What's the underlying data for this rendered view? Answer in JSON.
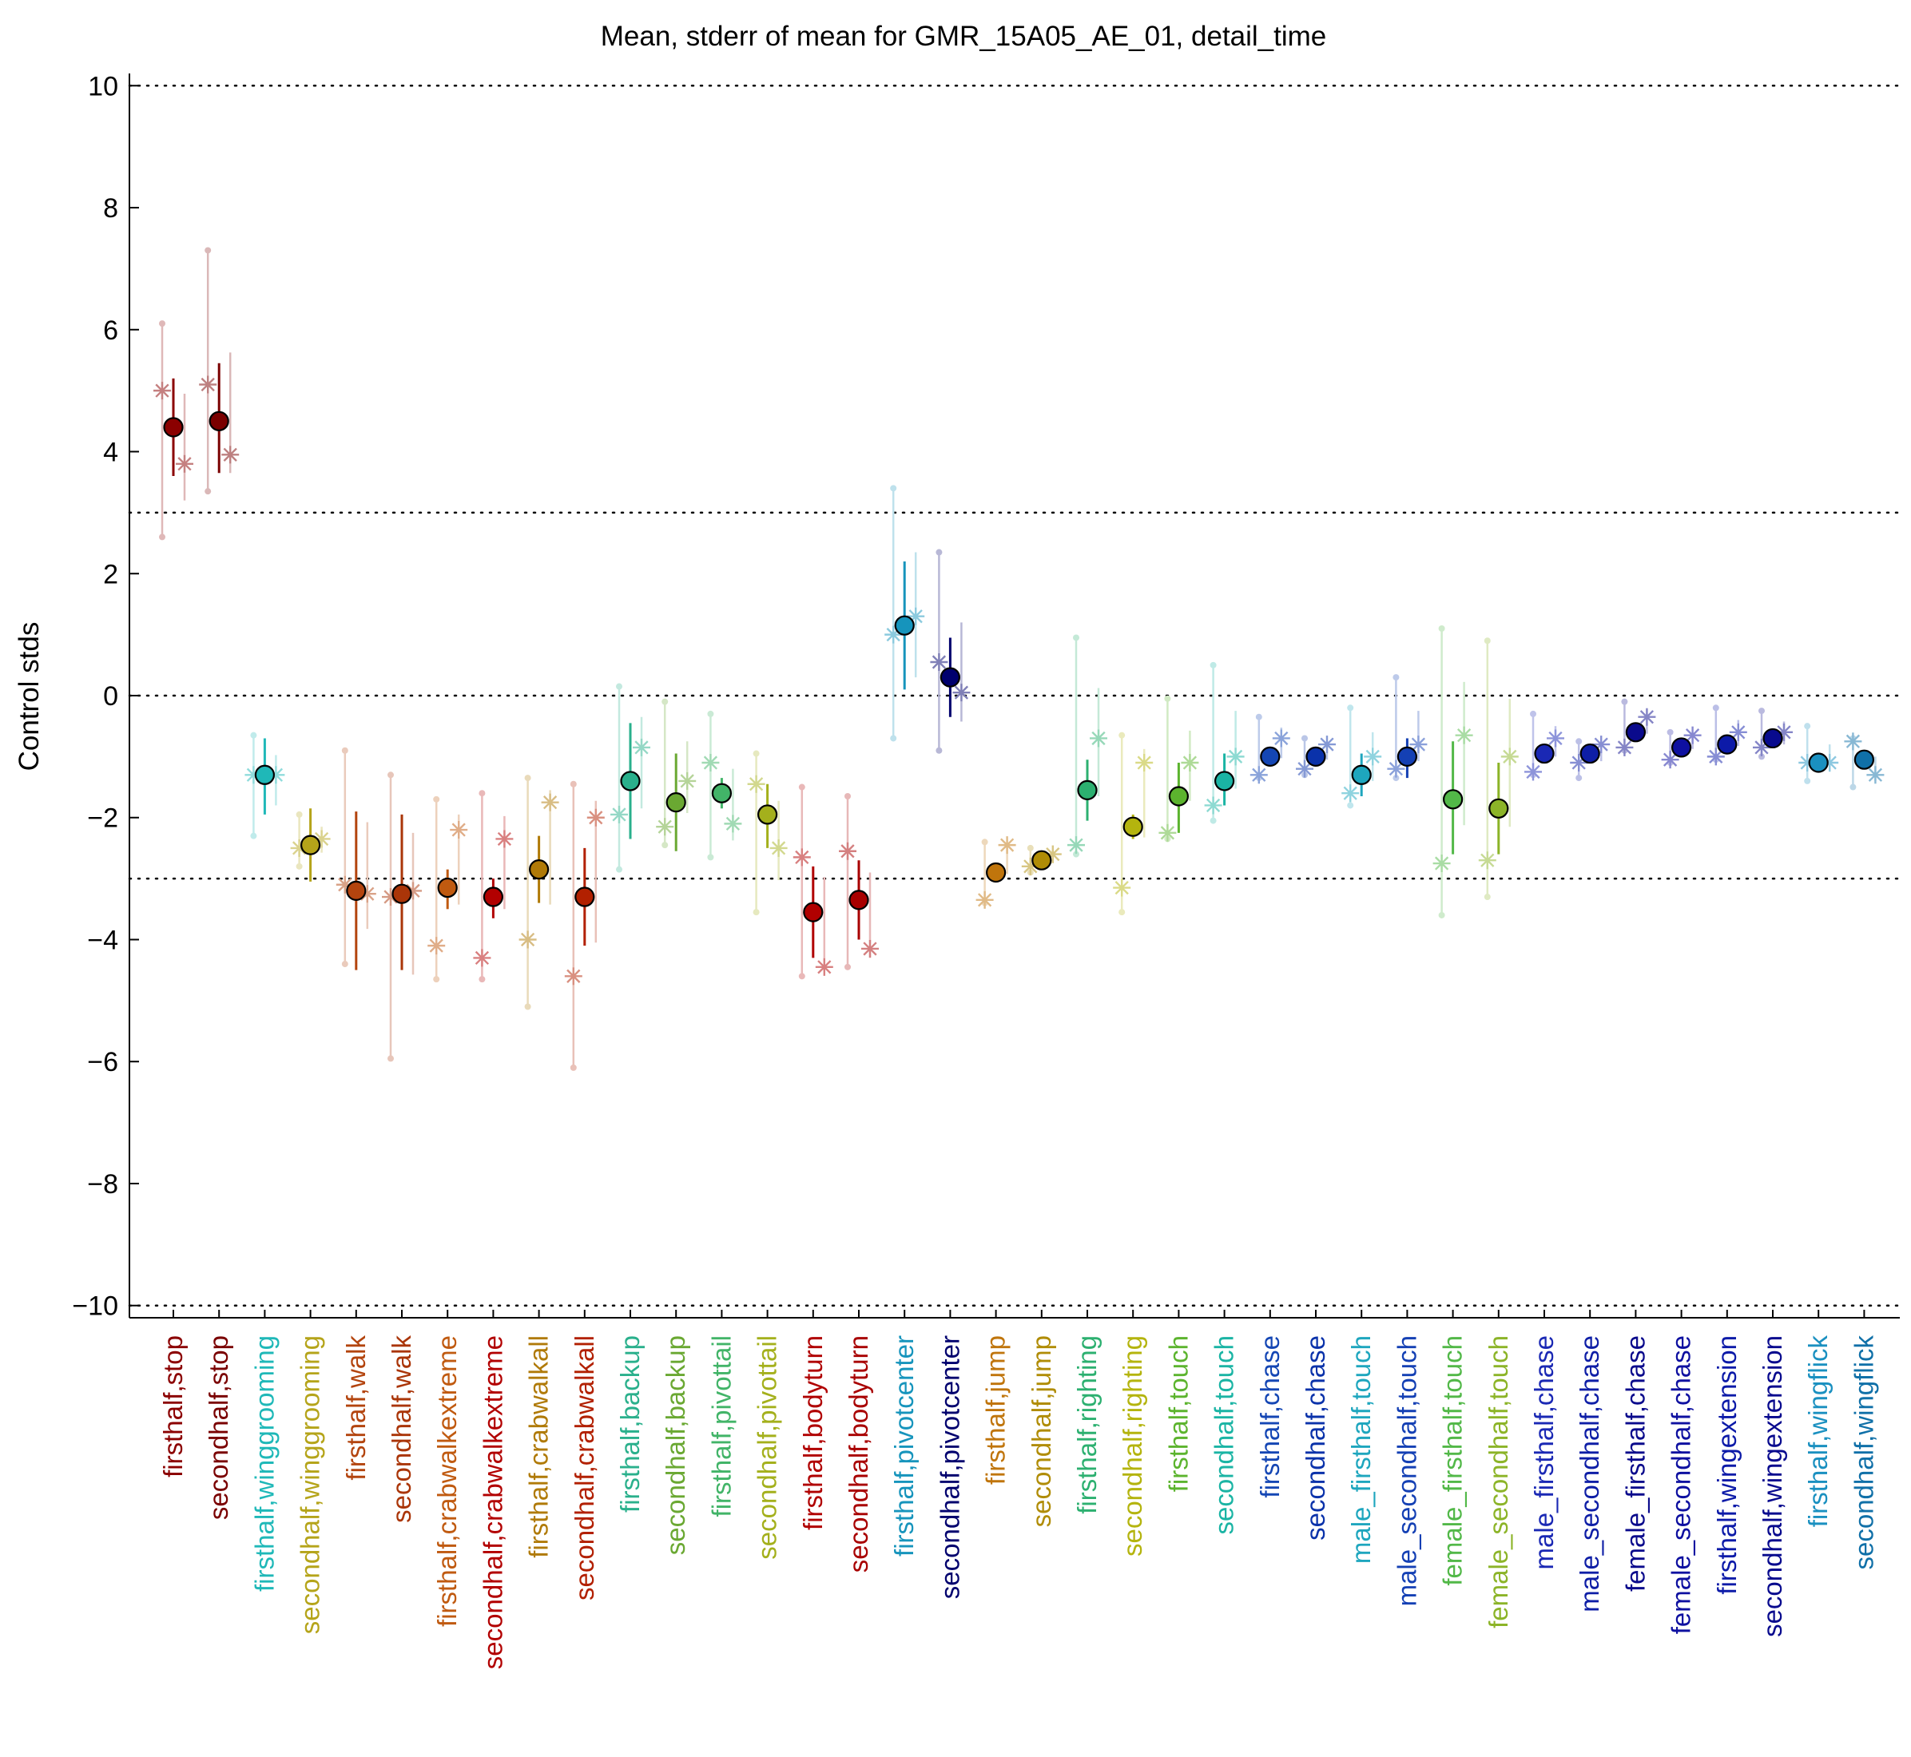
{
  "chart_data": {
    "type": "scatter",
    "title": "Mean, stderr of mean for GMR_15A05_AE_01, detail_time",
    "xlabel": "",
    "ylabel": "Control stds",
    "ylim": [
      -10.2,
      10.2
    ],
    "yticks": [
      10,
      8,
      6,
      4,
      2,
      0,
      -2,
      -4,
      -6,
      -8,
      -10
    ],
    "ytick_labels": [
      "10",
      "8",
      "6",
      "4",
      "2",
      "0",
      "−2",
      "−4",
      "−6",
      "−8",
      "−10"
    ],
    "reference_lines": [
      10,
      3,
      0,
      -3,
      -10
    ],
    "grid": false,
    "legend": "none",
    "points": [
      {
        "label": "firsthalf,stop",
        "color": "#8b0000",
        "mean": 4.4,
        "se_low": 3.6,
        "se_high": 5.2,
        "reps": [
          5.0,
          3.8
        ],
        "raw_low": 2.6,
        "raw_high": 6.1
      },
      {
        "label": "secondhalf,stop",
        "color": "#7a0000",
        "mean": 4.5,
        "se_low": 3.65,
        "se_high": 5.45,
        "reps": [
          5.1,
          3.95
        ],
        "raw_low": 3.35,
        "raw_high": 7.3
      },
      {
        "label": "firsthalf,winggrooming",
        "color": "#1fb8b8",
        "mean": -1.3,
        "se_low": -1.95,
        "se_high": -0.7,
        "reps": [
          -1.3,
          -1.3
        ],
        "raw_low": -2.3,
        "raw_high": -0.65
      },
      {
        "label": "secondhalf,winggrooming",
        "color": "#b5a41a",
        "mean": -2.45,
        "se_low": -3.05,
        "se_high": -1.85,
        "reps": [
          -2.5,
          -2.35
        ],
        "raw_low": -2.8,
        "raw_high": -1.95
      },
      {
        "label": "firsthalf,walk",
        "color": "#b3440e",
        "mean": -3.2,
        "se_low": -4.5,
        "se_high": -1.9,
        "reps": [
          -3.1,
          -3.25
        ],
        "raw_low": -4.4,
        "raw_high": -0.9
      },
      {
        "label": "secondhalf,walk",
        "color": "#aa3508",
        "mean": -3.25,
        "se_low": -4.5,
        "se_high": -1.95,
        "reps": [
          -3.3,
          -3.2
        ],
        "raw_low": -5.95,
        "raw_high": -1.3
      },
      {
        "label": "firsthalf,crabwalkextreme",
        "color": "#c05a10",
        "mean": -3.15,
        "se_low": -3.5,
        "se_high": -2.85,
        "reps": [
          -4.1,
          -2.2
        ],
        "raw_low": -4.65,
        "raw_high": -1.7
      },
      {
        "label": "secondhalf,crabwalkextreme",
        "color": "#b20000",
        "mean": -3.3,
        "se_low": -3.65,
        "se_high": -3.0,
        "reps": [
          -4.3,
          -2.35
        ],
        "raw_low": -4.65,
        "raw_high": -1.6
      },
      {
        "label": "firsthalf,crabwalkall",
        "color": "#b07a08",
        "mean": -2.85,
        "se_low": -3.4,
        "se_high": -2.3,
        "reps": [
          -4.0,
          -1.75
        ],
        "raw_low": -5.1,
        "raw_high": -1.35
      },
      {
        "label": "secondhalf,crabwalkall",
        "color": "#b22000",
        "mean": -3.3,
        "se_low": -4.1,
        "se_high": -2.5,
        "reps": [
          -4.6,
          -2.0
        ],
        "raw_low": -6.1,
        "raw_high": -1.45
      },
      {
        "label": "firsthalf,backup",
        "color": "#2ab08c",
        "mean": -1.4,
        "se_low": -2.35,
        "se_high": -0.45,
        "reps": [
          -1.95,
          -0.85
        ],
        "raw_low": -2.85,
        "raw_high": 0.15
      },
      {
        "label": "secondhalf,backup",
        "color": "#6aa832",
        "mean": -1.75,
        "se_low": -2.55,
        "se_high": -0.95,
        "reps": [
          -2.15,
          -1.4
        ],
        "raw_low": -2.45,
        "raw_high": -0.1
      },
      {
        "label": "firsthalf,pivottail",
        "color": "#42b468",
        "mean": -1.6,
        "se_low": -1.85,
        "se_high": -1.35,
        "reps": [
          -1.1,
          -2.1
        ],
        "raw_low": -2.65,
        "raw_high": -0.3
      },
      {
        "label": "secondhalf,pivottail",
        "color": "#a4b01c",
        "mean": -1.95,
        "se_low": -2.5,
        "se_high": -1.45,
        "reps": [
          -1.45,
          -2.5
        ],
        "raw_low": -3.55,
        "raw_high": -0.95
      },
      {
        "label": "firsthalf,bodyturn",
        "color": "#b00000",
        "mean": -3.55,
        "se_low": -4.3,
        "se_high": -2.8,
        "reps": [
          -2.65,
          -4.45
        ],
        "raw_low": -4.6,
        "raw_high": -1.5
      },
      {
        "label": "secondhalf,bodyturn",
        "color": "#a80000",
        "mean": -3.35,
        "se_low": -4.0,
        "se_high": -2.7,
        "reps": [
          -2.55,
          -4.15
        ],
        "raw_low": -4.45,
        "raw_high": -1.65
      },
      {
        "label": "firsthalf,pivotcenter",
        "color": "#1694bc",
        "mean": 1.15,
        "se_low": 0.1,
        "se_high": 2.2,
        "reps": [
          1.0,
          1.3
        ],
        "raw_low": -0.7,
        "raw_high": 3.4
      },
      {
        "label": "secondhalf,pivotcenter",
        "color": "#00006e",
        "mean": 0.3,
        "se_low": -0.35,
        "se_high": 0.95,
        "reps": [
          0.55,
          0.05
        ],
        "raw_low": -0.9,
        "raw_high": 2.35
      },
      {
        "label": "firsthalf,jump",
        "color": "#c0750c",
        "mean": -2.9,
        "se_low": -3.05,
        "se_high": -2.75,
        "reps": [
          -3.35,
          -2.45
        ],
        "raw_low": -3.4,
        "raw_high": -2.4
      },
      {
        "label": "secondhalf,jump",
        "color": "#b08c06",
        "mean": -2.7,
        "se_low": -2.85,
        "se_high": -2.55,
        "reps": [
          -2.8,
          -2.6
        ],
        "raw_low": -2.9,
        "raw_high": -2.5
      },
      {
        "label": "firsthalf,righting",
        "color": "#2cb070",
        "mean": -1.55,
        "se_low": -2.05,
        "se_high": -1.05,
        "reps": [
          -2.45,
          -0.7
        ],
        "raw_low": -2.6,
        "raw_high": 0.95
      },
      {
        "label": "secondhalf,righting",
        "color": "#b4b40e",
        "mean": -2.15,
        "se_low": -2.35,
        "se_high": -1.95,
        "reps": [
          -3.15,
          -1.1
        ],
        "raw_low": -3.55,
        "raw_high": -0.65
      },
      {
        "label": "firsthalf,touch",
        "color": "#5cb42e",
        "mean": -1.65,
        "se_low": -2.25,
        "se_high": -1.1,
        "reps": [
          -2.25,
          -1.1
        ],
        "raw_low": -2.35,
        "raw_high": -0.05
      },
      {
        "label": "secondhalf,touch",
        "color": "#1ab4a4",
        "mean": -1.4,
        "se_low": -1.8,
        "se_high": -0.95,
        "reps": [
          -1.8,
          -1.0
        ],
        "raw_low": -2.05,
        "raw_high": 0.5
      },
      {
        "label": "firsthalf,chase",
        "color": "#1446b4",
        "mean": -1.0,
        "se_low": -1.1,
        "se_high": -0.9,
        "reps": [
          -1.3,
          -0.7
        ],
        "raw_low": -1.35,
        "raw_high": -0.35
      },
      {
        "label": "secondhalf,chase",
        "color": "#0a32aa",
        "mean": -1.0,
        "se_low": -1.1,
        "se_high": -0.9,
        "reps": [
          -1.2,
          -0.8
        ],
        "raw_low": -1.3,
        "raw_high": -0.7
      },
      {
        "label": "male_firsthalf,touch",
        "color": "#1ea6be",
        "mean": -1.3,
        "se_low": -1.65,
        "se_high": -0.95,
        "reps": [
          -1.6,
          -1.0
        ],
        "raw_low": -1.8,
        "raw_high": -0.2
      },
      {
        "label": "male_secondhalf,touch",
        "color": "#1440b4",
        "mean": -1.0,
        "se_low": -1.35,
        "se_high": -0.7,
        "reps": [
          -1.2,
          -0.8
        ],
        "raw_low": -1.35,
        "raw_high": 0.3
      },
      {
        "label": "female_firsthalf,touch",
        "color": "#52b848",
        "mean": -1.7,
        "se_low": -2.6,
        "se_high": -0.75,
        "reps": [
          -2.75,
          -0.65
        ],
        "raw_low": -3.6,
        "raw_high": 1.1
      },
      {
        "label": "female_secondhalf,touch",
        "color": "#8cb428",
        "mean": -1.85,
        "se_low": -2.6,
        "se_high": -1.1,
        "reps": [
          -2.7,
          -1.0
        ],
        "raw_low": -3.3,
        "raw_high": 0.9
      },
      {
        "label": "male_firsthalf,chase",
        "color": "#1a28b4",
        "mean": -0.95,
        "se_low": -1.05,
        "se_high": -0.85,
        "reps": [
          -1.25,
          -0.7
        ],
        "raw_low": -1.3,
        "raw_high": -0.3
      },
      {
        "label": "male_secondhalf,chase",
        "color": "#0e1ea6",
        "mean": -0.95,
        "se_low": -1.05,
        "se_high": -0.85,
        "reps": [
          -1.1,
          -0.8
        ],
        "raw_low": -1.35,
        "raw_high": -0.75
      },
      {
        "label": "female_firsthalf,chase",
        "color": "#0a0a8c",
        "mean": -0.6,
        "se_low": -0.7,
        "se_high": -0.5,
        "reps": [
          -0.85,
          -0.35
        ],
        "raw_low": -0.9,
        "raw_high": -0.1
      },
      {
        "label": "female_secondhalf,chase",
        "color": "#0e10a0",
        "mean": -0.85,
        "se_low": -0.95,
        "se_high": -0.75,
        "reps": [
          -1.05,
          -0.65
        ],
        "raw_low": -1.1,
        "raw_high": -0.6
      },
      {
        "label": "firsthalf,wingextension",
        "color": "#0c1aa8",
        "mean": -0.8,
        "se_low": -0.9,
        "se_high": -0.7,
        "reps": [
          -1.0,
          -0.6
        ],
        "raw_low": -1.05,
        "raw_high": -0.2
      },
      {
        "label": "secondhalf,wingextension",
        "color": "#080a8e",
        "mean": -0.7,
        "se_low": -0.8,
        "se_high": -0.6,
        "reps": [
          -0.85,
          -0.6
        ],
        "raw_low": -1.0,
        "raw_high": -0.25
      },
      {
        "label": "firsthalf,wingflick",
        "color": "#1a90c0",
        "mean": -1.1,
        "se_low": -1.2,
        "se_high": -1.0,
        "reps": [
          -1.1,
          -1.1
        ],
        "raw_low": -1.4,
        "raw_high": -0.5
      },
      {
        "label": "secondhalf,wingflick",
        "color": "#1070a8",
        "mean": -1.05,
        "se_low": -1.15,
        "se_high": -0.95,
        "reps": [
          -0.75,
          -1.3
        ],
        "raw_low": -1.5,
        "raw_high": -0.7
      }
    ]
  }
}
